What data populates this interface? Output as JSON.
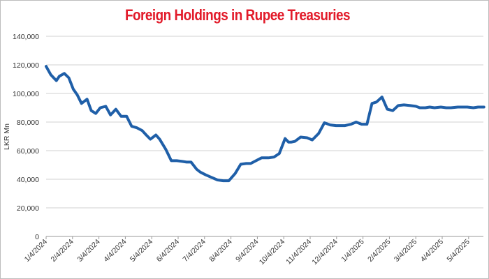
{
  "chart_data": {
    "type": "line",
    "title": "Foreign Holdings in Rupee Treasuries",
    "xlabel": "",
    "ylabel": "LKR Mn",
    "ylim": [
      0,
      140000
    ],
    "yticks": [
      0,
      20000,
      40000,
      60000,
      80000,
      100000,
      120000,
      140000
    ],
    "ytick_labels": [
      "0",
      "20,000",
      "40,000",
      "60,000",
      "80,000",
      "100,000",
      "120,000",
      "140,000"
    ],
    "xtick_labels": [
      "1/4/2024",
      "2/4/2024",
      "3/4/2024",
      "4/4/2024",
      "5/4/2024",
      "6/4/2024",
      "7/4/2024",
      "8/4/2024",
      "9/4/2024",
      "10/4/2024",
      "11/4/2024",
      "12/4/2024",
      "1/4/2025",
      "2/4/2025",
      "3/4/2025",
      "4/4/2025",
      "5/4/2025"
    ],
    "grid": true,
    "color": "#1f5fa8",
    "series": [
      {
        "name": "Foreign Holdings",
        "x": [
          0,
          0.18,
          0.39,
          0.5,
          0.69,
          0.86,
          1.03,
          1.18,
          1.34,
          1.55,
          1.71,
          1.88,
          2.05,
          2.26,
          2.44,
          2.64,
          2.84,
          3.05,
          3.24,
          3.44,
          3.64,
          3.79,
          3.95,
          4.16,
          4.3,
          4.53,
          4.74,
          4.95,
          5.15,
          5.32,
          5.49,
          5.7,
          5.84,
          6.05,
          6.24,
          6.49,
          6.71,
          6.92,
          7.16,
          7.37,
          7.58,
          7.75,
          7.95,
          8.16,
          8.42,
          8.63,
          8.83,
          9.05,
          9.18,
          9.29,
          9.42,
          9.64,
          9.88,
          10.08,
          10.32,
          10.54,
          10.76,
          10.98,
          11.11,
          11.32,
          11.55,
          11.74,
          11.95,
          12.15,
          12.34,
          12.51,
          12.72,
          12.92,
          13.13,
          13.33,
          13.55,
          13.8,
          14.0,
          14.15,
          14.36,
          14.53,
          14.71,
          14.95,
          15.15,
          15.33,
          15.59,
          15.79,
          15.95,
          16.18,
          16.36,
          16.58
        ],
        "values": [
          119000,
          113000,
          109000,
          112000,
          114000,
          111000,
          103000,
          99000,
          93000,
          96000,
          88000,
          86000,
          90000,
          91000,
          85000,
          89000,
          84000,
          84000,
          77000,
          76000,
          74000,
          71000,
          68000,
          71000,
          68000,
          61000,
          53000,
          53000,
          52500,
          52000,
          52000,
          47000,
          45000,
          43000,
          41500,
          39500,
          39000,
          39000,
          44000,
          50500,
          51000,
          51000,
          53000,
          55000,
          55000,
          55500,
          58000,
          68500,
          66000,
          66000,
          66500,
          69500,
          69000,
          67500,
          72000,
          79500,
          78000,
          77500,
          77500,
          77500,
          78500,
          80000,
          78500,
          78500,
          93000,
          94000,
          97500,
          89000,
          88000,
          91500,
          92000,
          91500,
          91000,
          90000,
          90000,
          90500,
          90000,
          90500,
          90000,
          90000,
          90500,
          90500,
          90500,
          90000,
          90500,
          90500
        ]
      }
    ]
  }
}
